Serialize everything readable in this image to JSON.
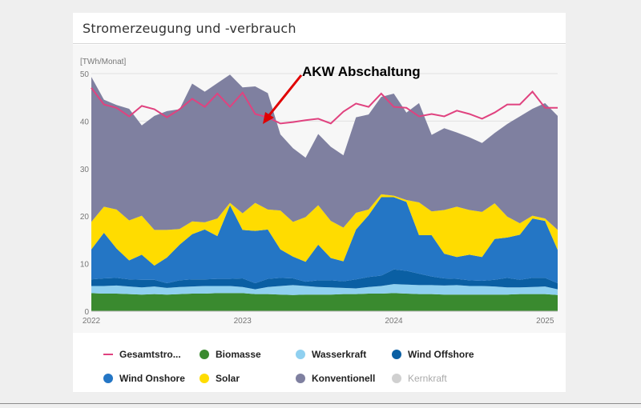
{
  "header": {
    "title": "Stromerzeugung und -verbrauch"
  },
  "annotation": {
    "text": "AKW Abschaltung",
    "color": "#e00000"
  },
  "chart_data": {
    "type": "area",
    "ylabel": "[TWh/Monat]",
    "ylim": [
      0,
      50
    ],
    "yticks": [
      0,
      10,
      20,
      30,
      40,
      50
    ],
    "xticks": [
      {
        "label": "2022",
        "index": 0
      },
      {
        "label": "2023",
        "index": 12
      },
      {
        "label": "2024",
        "index": 24
      },
      {
        "label": "2025",
        "index": 36
      }
    ],
    "months": 38,
    "stack_order": [
      "Biomasse",
      "Wasserkraft",
      "Wind Offshore",
      "Wind Onshore",
      "Solar",
      "Konventionell"
    ],
    "series": [
      {
        "name": "Biomasse",
        "color": "#3a8a2f",
        "values": [
          3.8,
          3.7,
          3.7,
          3.6,
          3.5,
          3.6,
          3.5,
          3.6,
          3.7,
          3.7,
          3.8,
          3.8,
          3.8,
          3.6,
          3.6,
          3.5,
          3.4,
          3.5,
          3.5,
          3.5,
          3.6,
          3.6,
          3.7,
          3.7,
          3.8,
          3.7,
          3.6,
          3.6,
          3.5,
          3.5,
          3.5,
          3.5,
          3.5,
          3.5,
          3.6,
          3.6,
          3.6,
          3.4
        ]
      },
      {
        "name": "Wasserkraft",
        "color": "#8fd0f0",
        "values": [
          1.5,
          1.6,
          1.7,
          1.6,
          1.5,
          1.6,
          1.4,
          1.5,
          1.5,
          1.6,
          1.5,
          1.5,
          1.3,
          1.0,
          1.5,
          1.8,
          2.1,
          1.8,
          1.6,
          1.5,
          1.3,
          1.2,
          1.4,
          1.6,
          1.9,
          1.9,
          1.9,
          1.9,
          1.9,
          2.0,
          1.8,
          1.8,
          1.7,
          1.5,
          1.4,
          1.5,
          1.6,
          1.2
        ]
      },
      {
        "name": "Wind Offshore",
        "color": "#0a5fa3",
        "values": [
          1.4,
          1.6,
          1.6,
          1.5,
          1.6,
          1.4,
          1.0,
          1.4,
          1.5,
          1.4,
          1.5,
          1.5,
          1.8,
          1.3,
          1.7,
          1.7,
          1.4,
          0.9,
          1.4,
          1.5,
          1.4,
          1.9,
          2.1,
          2.2,
          3.1,
          2.9,
          2.4,
          1.8,
          1.5,
          1.3,
          1.2,
          1.1,
          1.4,
          2.0,
          1.6,
          1.9,
          1.8,
          1.3
        ]
      },
      {
        "name": "Wind Onshore",
        "color": "#2476c5",
        "values": [
          6.3,
          9.6,
          6.2,
          4.0,
          5.3,
          3.0,
          5.4,
          7.5,
          9.5,
          10.5,
          9.0,
          15.5,
          10.2,
          11.0,
          10.4,
          6.0,
          4.6,
          4.2,
          7.5,
          4.7,
          4.2,
          10.5,
          13.0,
          16.5,
          15.2,
          14.5,
          8.1,
          8.7,
          5.2,
          4.6,
          5.4,
          5.0,
          8.6,
          8.5,
          9.5,
          12.5,
          12.0,
          7.0
        ]
      },
      {
        "name": "Solar",
        "color": "#ffdc00",
        "values": [
          5.8,
          5.5,
          8.2,
          8.4,
          8.2,
          7.5,
          5.8,
          3.3,
          2.7,
          1.5,
          3.7,
          0.5,
          3.5,
          5.9,
          4.2,
          8.2,
          7.3,
          9.4,
          8.3,
          7.8,
          7.1,
          3.5,
          1.2,
          0.6,
          0.3,
          0.4,
          6.9,
          5.0,
          9.2,
          10.6,
          9.4,
          9.5,
          7.5,
          4.4,
          2.4,
          0.6,
          0.5,
          4.2
        ]
      },
      {
        "name": "Konventionell",
        "color": "#7f80a0",
        "values": [
          30.5,
          22.5,
          22.0,
          23.5,
          19.0,
          24.0,
          25.0,
          25.2,
          29.0,
          27.5,
          28.5,
          27.0,
          26.5,
          24.5,
          24.5,
          16.0,
          15.5,
          12.5,
          15.0,
          15.6,
          15.2,
          20.1,
          20.0,
          20.5,
          21.5,
          18.4,
          20.9,
          16.1,
          17.2,
          15.6,
          15.3,
          14.5,
          14.8,
          19.5,
          22.5,
          22.5,
          24.3,
          24.0
        ]
      },
      {
        "name": "Kernkraft",
        "color": "#d0d0d0",
        "visible": false,
        "values": []
      },
      {
        "name": "Gesamtstro...",
        "type": "line",
        "color": "#e0427f",
        "values": [
          47.0,
          43.5,
          42.8,
          41.0,
          43.2,
          42.5,
          40.8,
          42.5,
          44.7,
          43.0,
          45.8,
          43.0,
          46.0,
          41.5,
          40.8,
          39.5,
          39.8,
          40.2,
          40.5,
          39.5,
          42.0,
          43.7,
          43.0,
          45.8,
          43.0,
          42.8,
          41.0,
          41.5,
          41.0,
          42.2,
          41.5,
          40.5,
          41.8,
          43.5,
          43.5,
          46.2,
          42.8,
          42.8
        ]
      }
    ]
  },
  "legend": [
    {
      "label": "Gesamtstro...",
      "color": "#e0427f",
      "kind": "line",
      "muted": false
    },
    {
      "label": "Biomasse",
      "color": "#3a8a2f",
      "kind": "dot",
      "muted": false
    },
    {
      "label": "Wasserkraft",
      "color": "#8fd0f0",
      "kind": "dot",
      "muted": false
    },
    {
      "label": "Wind Offshore",
      "color": "#0a5fa3",
      "kind": "dot",
      "muted": false
    },
    {
      "label": "Wind Onshore",
      "color": "#2476c5",
      "kind": "dot",
      "muted": false
    },
    {
      "label": "Solar",
      "color": "#ffdc00",
      "kind": "dot",
      "muted": false
    },
    {
      "label": "Konventionell",
      "color": "#7f80a0",
      "kind": "dot",
      "muted": false
    },
    {
      "label": "Kernkraft",
      "color": "#d0d0d0",
      "kind": "dot",
      "muted": true
    }
  ]
}
